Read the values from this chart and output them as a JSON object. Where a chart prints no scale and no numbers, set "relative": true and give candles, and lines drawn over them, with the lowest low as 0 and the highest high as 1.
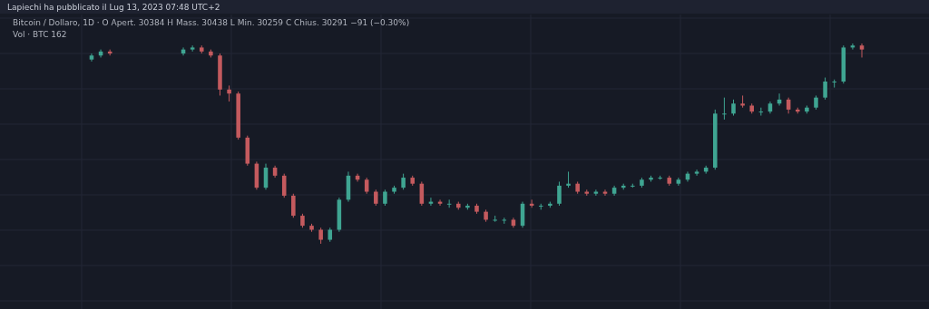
{
  "chart_data": {
    "type": "candlestick",
    "title": "Lapiechi ha pubblicato il Lug 13, 2023 07:48 UTC+2",
    "subtitle": "Bitcoin / Dollaro, 1D · O Apert. 30384 H Mass. 30438 L Min. 30259 C Chius. 30291 −91 (−0.30%)",
    "annotations": [
      "Vol · BTC 162"
    ],
    "relative": true,
    "grid": true,
    "colors": [
      null,
      null,
      null,
      null,
      null,
      null,
      null,
      null,
      null,
      "#3fa592",
      "#3fa592",
      "#c45a5e",
      null,
      null,
      null,
      null,
      null,
      null,
      null,
      "#3fa592",
      "#3fa592",
      "#c45a5e",
      "#c45a5e",
      "#c45a5e",
      "#c45a5e",
      "#c45a5e",
      "#c45a5e",
      "#c45a5e",
      "#3fa592",
      "#c45a5e",
      "#c45a5e",
      "#c45a5e",
      "#c45a5e",
      "#c45a5e",
      "#c45a5e",
      "#3fa592",
      "#3fa592",
      "#3fa592",
      "#c45a5e",
      "#c45a5e",
      "#c45a5e",
      "#3fa592",
      "#3fa592",
      "#3fa592",
      "#c45a5e",
      "#c45a5e",
      "#3fa592",
      "#c45a5e",
      "#3fa592",
      "#c45a5e",
      "#3fa592",
      "#c45a5e",
      "#c45a5e",
      "#3fa592",
      "#3fa592",
      "#c45a5e",
      "#3fa592",
      "#c45a5e",
      "#3fa592",
      "#3fa592",
      "#3fa592",
      "#3fa592",
      "#c45a5e",
      "#c45a5e",
      "#3fa592",
      "#c45a5e",
      "#3fa592",
      "#3fa592",
      "#3fa592",
      "#3fa592",
      "#3fa592",
      "#3fa592",
      "#c45a5e",
      "#3fa592",
      "#3fa592",
      "#3fa592",
      "#3fa592",
      "#3fa592",
      "#3fa592",
      "#3fa592",
      "#c45a5e",
      "#c45a5e",
      "#3fa592",
      "#3fa592",
      "#3fa592",
      "#c45a5e",
      "#c45a5e",
      "#3fa592",
      "#3fa592",
      "#3fa592",
      "#3fa592",
      "#3fa592",
      "#3fa592",
      "#c45a5e"
    ],
    "categories": [
      null,
      null,
      null,
      null,
      null,
      null,
      null,
      null,
      null,
      null,
      null,
      null,
      null,
      null,
      null,
      null,
      null,
      null,
      null,
      null,
      null,
      null,
      null,
      null,
      null,
      null,
      null,
      null,
      null,
      null,
      null,
      null,
      null,
      null,
      null,
      null,
      null,
      null,
      null,
      null,
      null,
      null,
      null,
      null,
      null,
      null,
      null,
      null,
      null,
      null,
      null,
      null,
      null,
      null,
      null,
      null,
      null,
      null,
      null,
      null,
      null,
      null,
      null,
      null,
      null,
      null,
      null,
      null,
      null,
      null,
      null,
      null,
      null,
      null,
      null,
      null,
      null,
      null,
      null,
      null,
      null,
      null,
      null,
      null,
      null,
      null,
      null,
      null,
      null,
      null,
      null,
      null,
      null,
      null
    ],
    "ohlc": [
      null,
      null,
      null,
      null,
      null,
      null,
      null,
      null,
      null,
      [
        0.92,
        0.95,
        0.91,
        0.94
      ],
      [
        0.94,
        0.97,
        0.93,
        0.96
      ],
      [
        0.96,
        0.97,
        0.94,
        0.95
      ],
      null,
      null,
      null,
      null,
      null,
      null,
      null,
      [
        0.95,
        0.98,
        0.94,
        0.97
      ],
      [
        0.97,
        0.99,
        0.96,
        0.98
      ],
      [
        0.98,
        0.99,
        0.95,
        0.96
      ],
      [
        0.96,
        0.97,
        0.93,
        0.94
      ],
      [
        0.94,
        0.95,
        0.74,
        0.77
      ],
      [
        0.77,
        0.79,
        0.71,
        0.75
      ],
      [
        0.75,
        0.76,
        0.52,
        0.53
      ],
      [
        0.53,
        0.54,
        0.39,
        0.4
      ],
      [
        0.4,
        0.41,
        0.27,
        0.28
      ],
      [
        0.28,
        0.4,
        0.27,
        0.38
      ],
      [
        0.38,
        0.39,
        0.33,
        0.34
      ],
      [
        0.34,
        0.35,
        0.23,
        0.24
      ],
      [
        0.24,
        0.25,
        0.13,
        0.14
      ],
      [
        0.14,
        0.15,
        0.08,
        0.09
      ],
      [
        0.09,
        0.1,
        0.06,
        0.07
      ],
      [
        0.07,
        0.08,
        0.0,
        0.02
      ],
      [
        0.02,
        0.08,
        0.01,
        0.07
      ],
      [
        0.07,
        0.23,
        0.06,
        0.22
      ],
      [
        0.22,
        0.36,
        0.21,
        0.34
      ],
      [
        0.34,
        0.35,
        0.31,
        0.32
      ],
      [
        0.32,
        0.33,
        0.25,
        0.26
      ],
      [
        0.26,
        0.27,
        0.19,
        0.2
      ],
      [
        0.2,
        0.27,
        0.19,
        0.26
      ],
      [
        0.26,
        0.29,
        0.25,
        0.28
      ],
      [
        0.28,
        0.35,
        0.27,
        0.33
      ],
      [
        0.33,
        0.34,
        0.29,
        0.3
      ],
      [
        0.3,
        0.31,
        0.19,
        0.2
      ],
      [
        0.2,
        0.23,
        0.19,
        0.21
      ],
      [
        0.21,
        0.22,
        0.19,
        0.2
      ],
      [
        0.2,
        0.22,
        0.18,
        0.2
      ],
      [
        0.2,
        0.21,
        0.17,
        0.18
      ],
      [
        0.18,
        0.2,
        0.17,
        0.19
      ],
      [
        0.19,
        0.2,
        0.15,
        0.16
      ],
      [
        0.16,
        0.17,
        0.11,
        0.12
      ],
      [
        0.12,
        0.14,
        0.11,
        0.12
      ],
      [
        0.12,
        0.13,
        0.1,
        0.12
      ],
      [
        0.12,
        0.13,
        0.08,
        0.09
      ],
      [
        0.09,
        0.21,
        0.08,
        0.2
      ],
      [
        0.2,
        0.22,
        0.18,
        0.19
      ],
      [
        0.19,
        0.2,
        0.17,
        0.19
      ],
      [
        0.19,
        0.21,
        0.18,
        0.2
      ],
      [
        0.2,
        0.31,
        0.19,
        0.29
      ],
      [
        0.29,
        0.36,
        0.28,
        0.3
      ],
      [
        0.3,
        0.31,
        0.25,
        0.26
      ],
      [
        0.26,
        0.27,
        0.24,
        0.25
      ],
      [
        0.25,
        0.27,
        0.24,
        0.26
      ],
      [
        0.26,
        0.27,
        0.24,
        0.25
      ],
      [
        0.25,
        0.29,
        0.24,
        0.28
      ],
      [
        0.28,
        0.3,
        0.27,
        0.29
      ],
      [
        0.29,
        0.3,
        0.28,
        0.29
      ],
      [
        0.29,
        0.33,
        0.28,
        0.32
      ],
      [
        0.32,
        0.34,
        0.31,
        0.33
      ],
      [
        0.33,
        0.34,
        0.32,
        0.33
      ],
      [
        0.33,
        0.34,
        0.29,
        0.3
      ],
      [
        0.3,
        0.33,
        0.29,
        0.32
      ],
      [
        0.32,
        0.36,
        0.31,
        0.35
      ],
      [
        0.35,
        0.37,
        0.34,
        0.36
      ],
      [
        0.36,
        0.39,
        0.35,
        0.38
      ],
      [
        0.38,
        0.67,
        0.37,
        0.65
      ],
      [
        0.65,
        0.73,
        0.62,
        0.65
      ],
      [
        0.65,
        0.72,
        0.64,
        0.7
      ],
      [
        0.7,
        0.74,
        0.68,
        0.69
      ],
      [
        0.69,
        0.7,
        0.65,
        0.66
      ],
      [
        0.66,
        0.68,
        0.64,
        0.66
      ],
      [
        0.66,
        0.71,
        0.65,
        0.7
      ],
      [
        0.7,
        0.75,
        0.69,
        0.72
      ],
      [
        0.72,
        0.73,
        0.65,
        0.67
      ],
      [
        0.67,
        0.68,
        0.65,
        0.66
      ],
      [
        0.66,
        0.69,
        0.65,
        0.68
      ],
      [
        0.68,
        0.74,
        0.67,
        0.73
      ],
      [
        0.73,
        0.83,
        0.72,
        0.81
      ],
      [
        0.81,
        0.82,
        0.78,
        0.81
      ],
      [
        0.81,
        0.99,
        0.8,
        0.98
      ],
      [
        0.98,
        1.0,
        0.97,
        0.99
      ],
      [
        0.99,
        1.0,
        0.93,
        0.97
      ]
    ]
  }
}
